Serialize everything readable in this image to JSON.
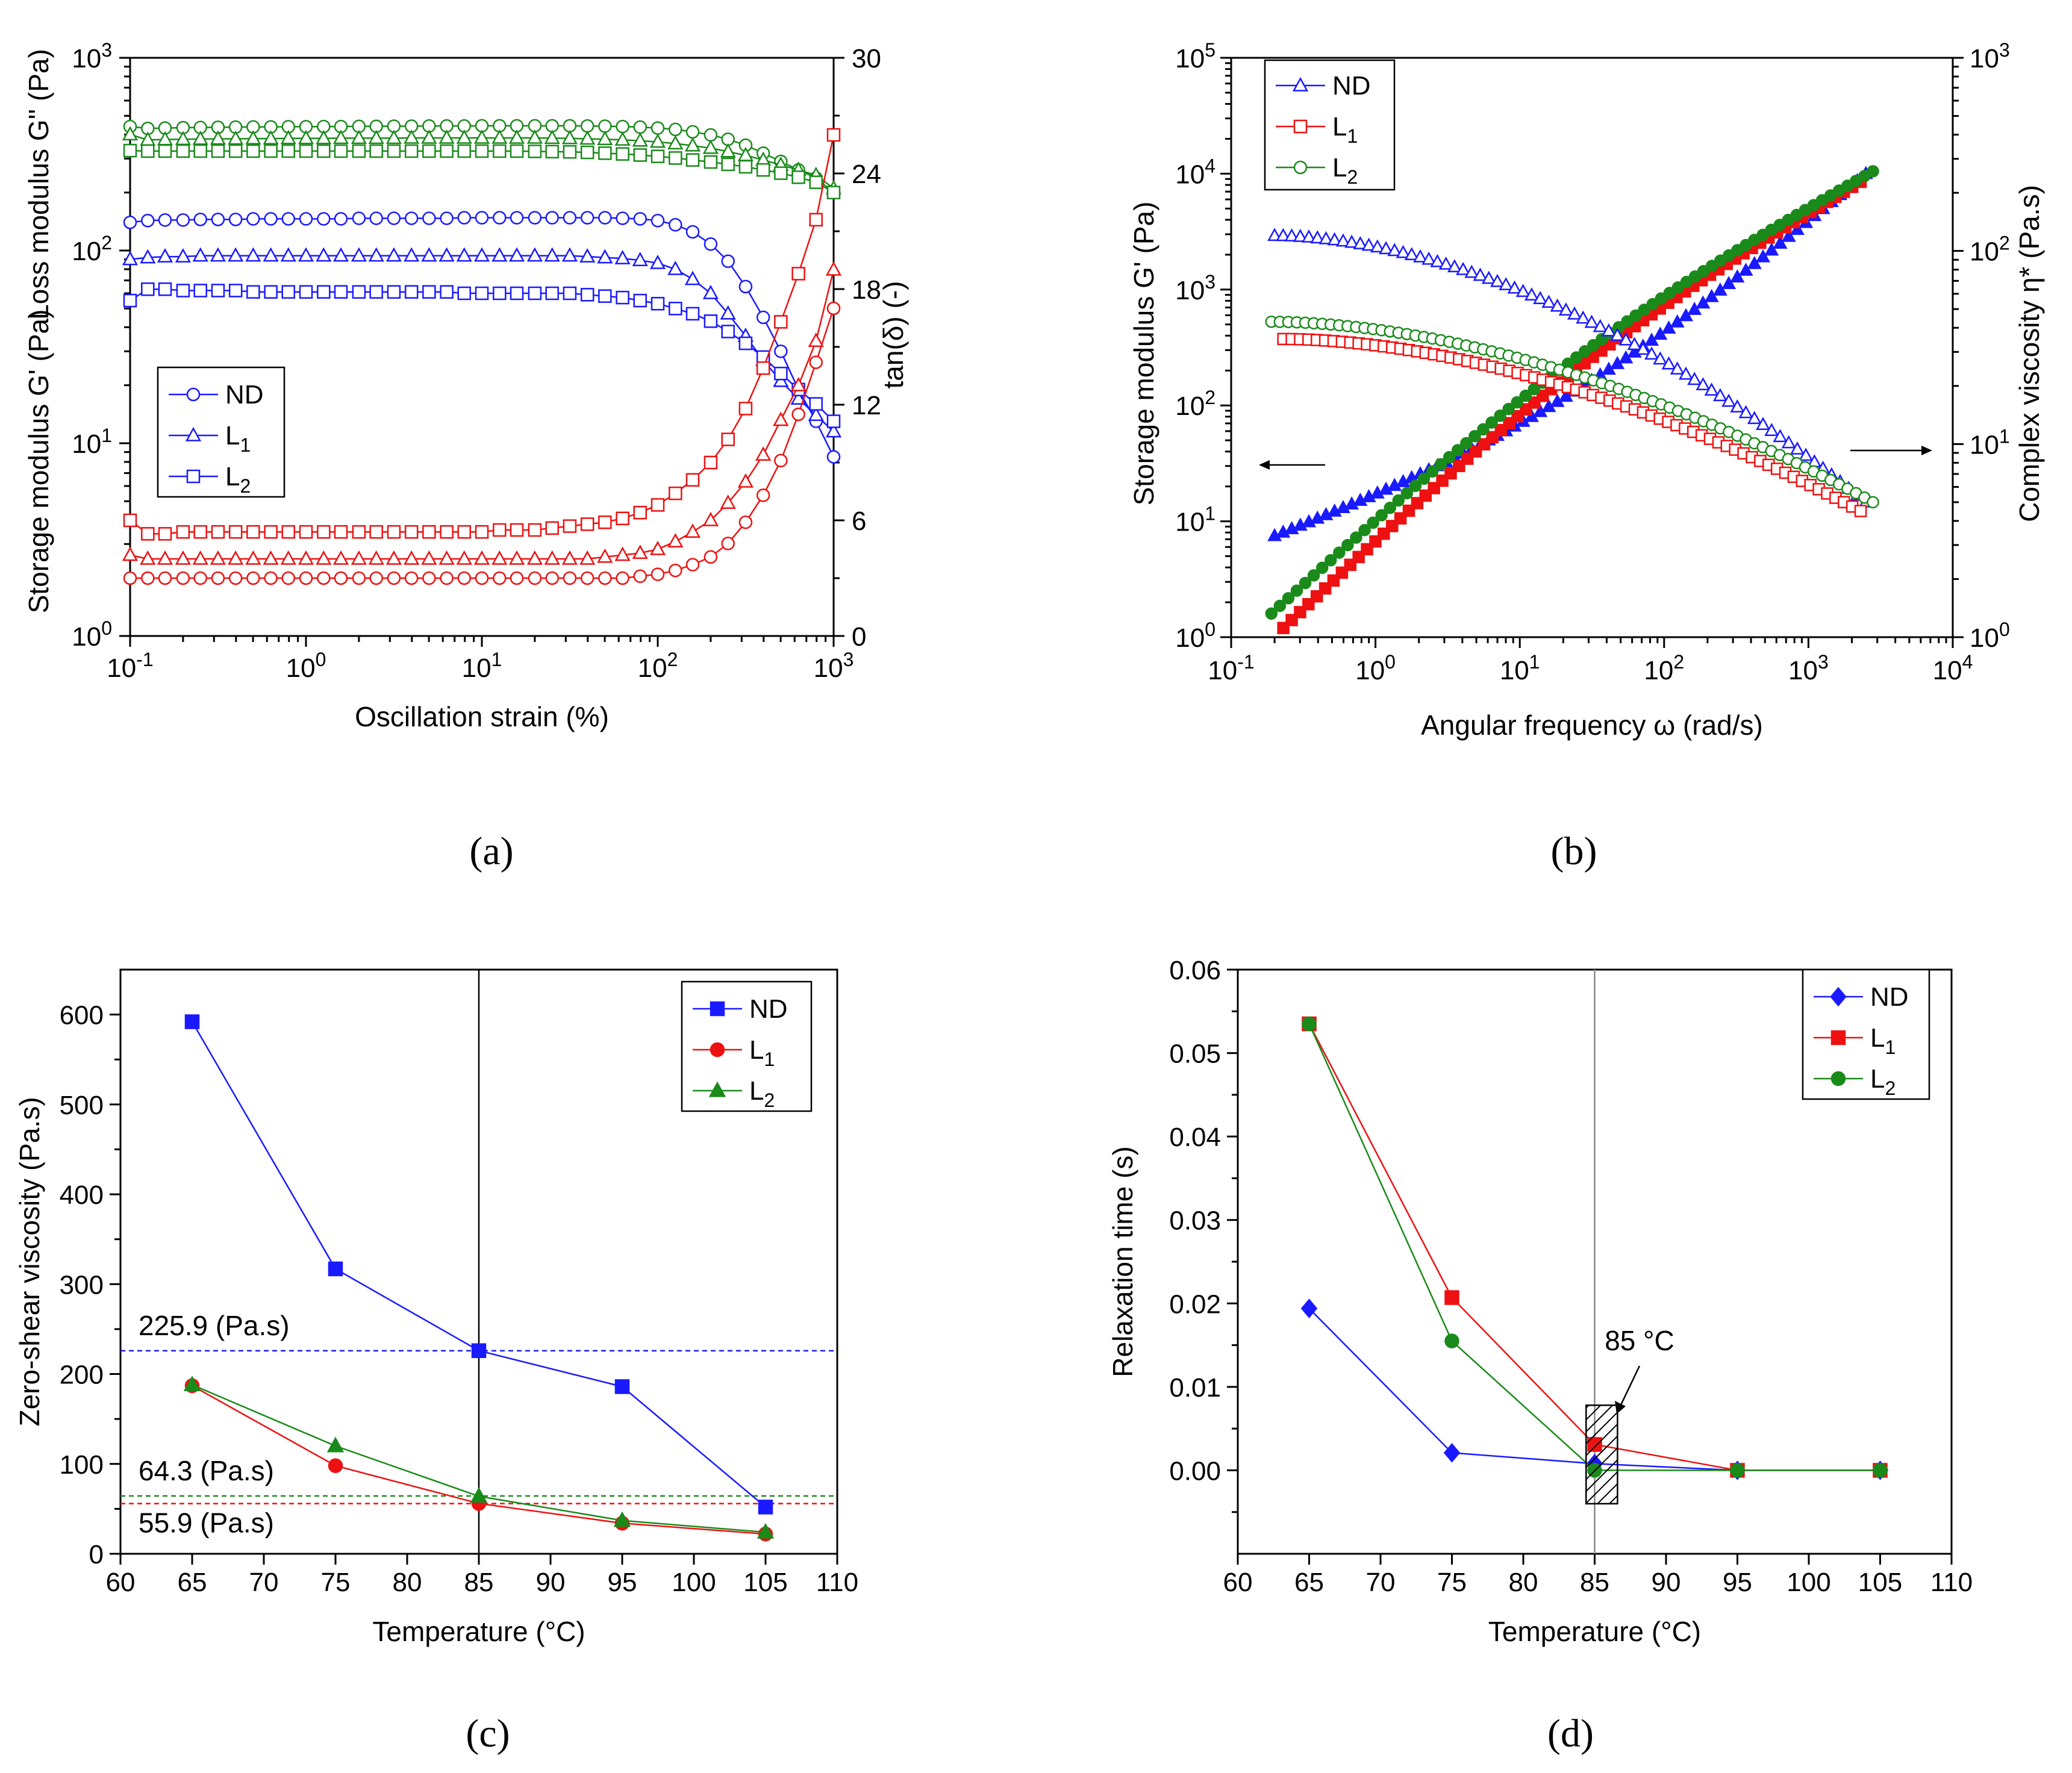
{
  "colors": {
    "blue": "#1a1aff",
    "red": "#ee1111",
    "green": "#1a8a1a",
    "black": "#000000"
  },
  "chart_data": [
    {
      "id": "a",
      "type": "line",
      "caption": "(a)",
      "xlabel": "Oscillation strain (%)",
      "ylabel_left_g1": "Storage modulus G' (Pa)",
      "ylabel_left_g2": "Loss modulus G'' (Pa)",
      "ylabel_right": "tan(δ) (-)",
      "x_scale": "log",
      "xlim": [
        0.1,
        1000
      ],
      "y_left_scale": "log",
      "ylim_left": [
        1,
        1000
      ],
      "ylim_right": [
        0,
        30
      ],
      "x_ticks": [
        "10",
        "10",
        "10",
        "10",
        "10"
      ],
      "x_tick_exp": [
        "-1",
        "0",
        "1",
        "2",
        "3"
      ],
      "y_left_ticks": [
        "10",
        "10",
        "10",
        "10"
      ],
      "y_left_tick_exp": [
        "0",
        "1",
        "2",
        "3"
      ],
      "y_right_ticks": [
        "0",
        "6",
        "12",
        "18",
        "24",
        "30"
      ],
      "legend": [
        {
          "label": "ND"
        },
        {
          "label": "L",
          "sub": "1"
        },
        {
          "label": "L",
          "sub": "2"
        }
      ],
      "legend_position": "center-left",
      "x": [
        0.1,
        0.126,
        0.158,
        0.2,
        0.251,
        0.316,
        0.398,
        0.501,
        0.631,
        0.794,
        1,
        1.26,
        1.58,
        2,
        2.51,
        3.16,
        3.98,
        5.01,
        6.31,
        7.94,
        10,
        12.6,
        15.8,
        20,
        25.1,
        31.6,
        39.8,
        50.1,
        63.1,
        79.4,
        100,
        126,
        158,
        200,
        251,
        316,
        398,
        501,
        631,
        794,
        1000
      ],
      "series": [
        {
          "name": "G' ND",
          "axis": "left",
          "color": "blue",
          "marker": "circle",
          "values": [
            140,
            143,
            144,
            144,
            145,
            145,
            145,
            146,
            146,
            146,
            146,
            146,
            146,
            147,
            147,
            147,
            147,
            147,
            147,
            148,
            148,
            148,
            148,
            148,
            148,
            148,
            148,
            148,
            147,
            146,
            143,
            136,
            125,
            108,
            88,
            65,
            45,
            30,
            19,
            13,
            8.5
          ]
        },
        {
          "name": "G' L1",
          "axis": "left",
          "color": "blue",
          "marker": "triangle",
          "values": [
            90,
            92,
            93,
            93,
            94,
            94,
            94,
            94,
            94,
            94,
            94,
            94,
            94,
            94,
            94,
            94,
            94,
            94,
            94,
            94,
            94,
            94,
            94,
            94,
            94,
            94,
            93,
            92,
            91,
            89,
            86,
            80,
            71,
            60,
            47,
            36,
            27,
            21,
            17,
            14,
            11.5
          ]
        },
        {
          "name": "G' L2",
          "axis": "left",
          "color": "blue",
          "marker": "square",
          "values": [
            55,
            63,
            63,
            62,
            62,
            62,
            62,
            61,
            61,
            61,
            61,
            61,
            61,
            61,
            61,
            61,
            61,
            61,
            61,
            60,
            60,
            60,
            60,
            60,
            60,
            60,
            59,
            58,
            57,
            55,
            53,
            50,
            47,
            43,
            38,
            33,
            28,
            23,
            19,
            16,
            13
          ]
        },
        {
          "name": "G'' ND",
          "axis": "left",
          "color": "green",
          "marker": "circle",
          "values": [
            440,
            430,
            432,
            434,
            435,
            436,
            437,
            438,
            438,
            439,
            439,
            440,
            440,
            441,
            441,
            442,
            442,
            443,
            443,
            443,
            444,
            444,
            444,
            444,
            444,
            444,
            443,
            442,
            440,
            437,
            432,
            425,
            413,
            398,
            378,
            352,
            320,
            290,
            262,
            238,
            200
          ]
        },
        {
          "name": "G'' L1",
          "axis": "left",
          "color": "green",
          "marker": "triangle",
          "values": [
            400,
            375,
            377,
            378,
            379,
            380,
            380,
            381,
            381,
            382,
            382,
            382,
            383,
            383,
            383,
            383,
            384,
            384,
            384,
            384,
            384,
            384,
            384,
            384,
            383,
            382,
            380,
            378,
            375,
            371,
            366,
            359,
            350,
            340,
            326,
            312,
            295,
            278,
            262,
            246,
            210
          ]
        },
        {
          "name": "G'' L2",
          "axis": "left",
          "color": "green",
          "marker": "square",
          "values": [
            330,
            328,
            328,
            328,
            328,
            328,
            328,
            328,
            328,
            328,
            328,
            328,
            328,
            328,
            328,
            328,
            328,
            328,
            328,
            328,
            328,
            328,
            328,
            327,
            326,
            325,
            323,
            320,
            317,
            313,
            308,
            302,
            295,
            288,
            280,
            272,
            262,
            252,
            240,
            226,
            200
          ]
        },
        {
          "name": "tan ND",
          "axis": "right",
          "color": "red",
          "marker": "circle",
          "values": [
            3.0,
            3.0,
            3.0,
            3.0,
            3.0,
            3.0,
            3.0,
            3.0,
            3.0,
            3.0,
            3.0,
            3.0,
            3.0,
            3.0,
            3.0,
            3.0,
            3.0,
            3.0,
            3.0,
            3.0,
            3.0,
            3.0,
            3.0,
            3.0,
            3.0,
            3.0,
            3.0,
            3.0,
            3.0,
            3.1,
            3.2,
            3.4,
            3.7,
            4.1,
            4.8,
            5.9,
            7.3,
            9.1,
            11.5,
            14.2,
            17.0
          ]
        },
        {
          "name": "tan L1",
          "axis": "right",
          "color": "red",
          "marker": "triangle",
          "values": [
            4.2,
            4.0,
            4.0,
            4.0,
            4.0,
            4.0,
            4.0,
            4.0,
            4.0,
            4.0,
            4.0,
            4.0,
            4.0,
            4.0,
            4.0,
            4.0,
            4.0,
            4.0,
            4.0,
            4.0,
            4.0,
            4.0,
            4.0,
            4.0,
            4.0,
            4.0,
            4.0,
            4.1,
            4.2,
            4.3,
            4.5,
            4.9,
            5.4,
            6.0,
            6.9,
            8.0,
            9.4,
            11.2,
            13.0,
            15.3,
            19.0
          ]
        },
        {
          "name": "tan L2",
          "axis": "right",
          "color": "red",
          "marker": "square",
          "values": [
            6.0,
            5.3,
            5.3,
            5.4,
            5.4,
            5.4,
            5.4,
            5.4,
            5.4,
            5.4,
            5.4,
            5.4,
            5.4,
            5.4,
            5.4,
            5.4,
            5.4,
            5.4,
            5.4,
            5.4,
            5.4,
            5.5,
            5.5,
            5.5,
            5.6,
            5.7,
            5.8,
            5.9,
            6.1,
            6.4,
            6.8,
            7.4,
            8.1,
            9.0,
            10.2,
            11.8,
            13.9,
            16.3,
            18.8,
            21.6,
            26.0
          ]
        }
      ]
    },
    {
      "id": "b",
      "type": "scatter",
      "caption": "(b)",
      "xlabel": "Angular frequency ω (rad/s)",
      "ylabel_left": "Storage modulus G' (Pa)",
      "ylabel_right": "Complex viscosity η* (Pa.s)",
      "x_scale": "log",
      "xlim": [
        0.1,
        10000
      ],
      "y_left_scale": "log",
      "ylim_left": [
        1,
        100000
      ],
      "y_right_scale": "log",
      "ylim_right": [
        1,
        1000
      ],
      "x_ticks": [
        "10",
        "10",
        "10",
        "10",
        "10",
        "10"
      ],
      "x_tick_exp": [
        "-1",
        "0",
        "1",
        "2",
        "3",
        "4"
      ],
      "y_left_ticks": [
        "10",
        "10",
        "10",
        "10",
        "10",
        "10"
      ],
      "y_left_tick_exp": [
        "0",
        "1",
        "2",
        "3",
        "4",
        "5"
      ],
      "y_right_ticks": [
        "10",
        "10",
        "10",
        "10"
      ],
      "y_right_tick_exp": [
        "0",
        "1",
        "2",
        "3"
      ],
      "legend": [
        {
          "label": "ND",
          "color": "blue",
          "marker": "triangle-open"
        },
        {
          "label": "L",
          "sub": "1",
          "color": "red",
          "marker": "square-open"
        },
        {
          "label": "L",
          "sub": "2",
          "color": "green",
          "marker": "circle-open"
        }
      ],
      "legend_position": "top-left",
      "series": [
        {
          "name": "G' ND",
          "axis": "left",
          "color": "blue",
          "marker": "triangle",
          "x_range": [
            0.2,
            2500
          ],
          "y_range": [
            7.5,
            10000
          ],
          "count": 70
        },
        {
          "name": "G' L1",
          "axis": "left",
          "color": "red",
          "marker": "square",
          "x_range": [
            0.23,
            2300
          ],
          "y_range": [
            1.2,
            8500
          ],
          "count": 70
        },
        {
          "name": "G' L2",
          "axis": "left",
          "color": "green",
          "marker": "circle",
          "x_range": [
            0.19,
            2800
          ],
          "y_range": [
            1.6,
            10500
          ],
          "count": 72
        },
        {
          "name": "η* ND",
          "axis": "right",
          "color": "blue",
          "marker": "triangle-open",
          "x_range": [
            0.2,
            2500
          ],
          "y_range": [
            120,
            5
          ],
          "count": 70
        },
        {
          "name": "η* L1",
          "axis": "right",
          "color": "red",
          "marker": "square-open",
          "x_range": [
            0.23,
            2300
          ],
          "y_range": [
            35,
            4.5
          ],
          "count": 70
        },
        {
          "name": "η* L2",
          "axis": "right",
          "color": "green",
          "marker": "circle-open",
          "x_range": [
            0.19,
            2800
          ],
          "y_range": [
            43,
            5
          ],
          "count": 72
        }
      ]
    },
    {
      "id": "c",
      "type": "line",
      "caption": "(c)",
      "xlabel": "Temperature (°C)",
      "ylabel": "Zero-shear viscosity (Pa.s)",
      "xlim": [
        60,
        110
      ],
      "ylim": [
        0,
        650
      ],
      "x_ticks": [
        "60",
        "65",
        "70",
        "75",
        "80",
        "85",
        "90",
        "95",
        "100",
        "105",
        "110"
      ],
      "y_ticks": [
        "0",
        "100",
        "200",
        "300",
        "400",
        "500",
        "600"
      ],
      "vline": 85,
      "hlines": [
        {
          "value": 225.9,
          "color": "blue",
          "label": "225.9 (Pa.s)"
        },
        {
          "value": 64.3,
          "color": "green",
          "label": "64.3 (Pa.s)"
        },
        {
          "value": 55.9,
          "color": "red",
          "label": "55.9 (Pa.s)"
        }
      ],
      "legend": [
        {
          "label": "ND"
        },
        {
          "label": "L",
          "sub": "1"
        },
        {
          "label": "L",
          "sub": "2"
        }
      ],
      "legend_position": "top-right",
      "x": [
        65,
        75,
        85,
        95,
        105
      ],
      "series": [
        {
          "name": "ND",
          "color": "blue",
          "marker": "square",
          "values": [
            592,
            317,
            226,
            186,
            52
          ]
        },
        {
          "name": "L1",
          "color": "red",
          "marker": "circle",
          "values": [
            187,
            98,
            56,
            34,
            22
          ]
        },
        {
          "name": "L2",
          "color": "green",
          "marker": "triangle",
          "values": [
            188,
            120,
            64,
            37,
            24
          ]
        }
      ]
    },
    {
      "id": "d",
      "type": "line",
      "caption": "(d)",
      "xlabel": "Temperature (°C)",
      "ylabel": "Relaxation time (s)",
      "xlim": [
        60,
        110
      ],
      "ylim": [
        -0.01,
        0.06
      ],
      "x_ticks": [
        "60",
        "65",
        "70",
        "75",
        "80",
        "85",
        "90",
        "95",
        "100",
        "105",
        "110"
      ],
      "y_ticks": [
        "0.00",
        "0.01",
        "0.02",
        "0.03",
        "0.04",
        "0.05",
        "0.06"
      ],
      "vline": 85,
      "annotation": "85 °C",
      "legend": [
        {
          "label": "ND"
        },
        {
          "label": "L",
          "sub": "1"
        },
        {
          "label": "L",
          "sub": "2"
        }
      ],
      "legend_position": "top-right",
      "x": [
        65,
        75,
        85,
        95,
        105
      ],
      "series": [
        {
          "name": "ND",
          "color": "blue",
          "marker": "diamond",
          "values": [
            0.0194,
            0.0021,
            0.0008,
            0.0,
            0.0
          ]
        },
        {
          "name": "L1",
          "color": "red",
          "marker": "square",
          "values": [
            0.0535,
            0.0207,
            0.0031,
            0.0,
            0.0
          ]
        },
        {
          "name": "L2",
          "color": "green",
          "marker": "circle",
          "values": [
            0.0535,
            0.0155,
            0.0,
            0.0,
            0.0
          ]
        }
      ]
    }
  ]
}
